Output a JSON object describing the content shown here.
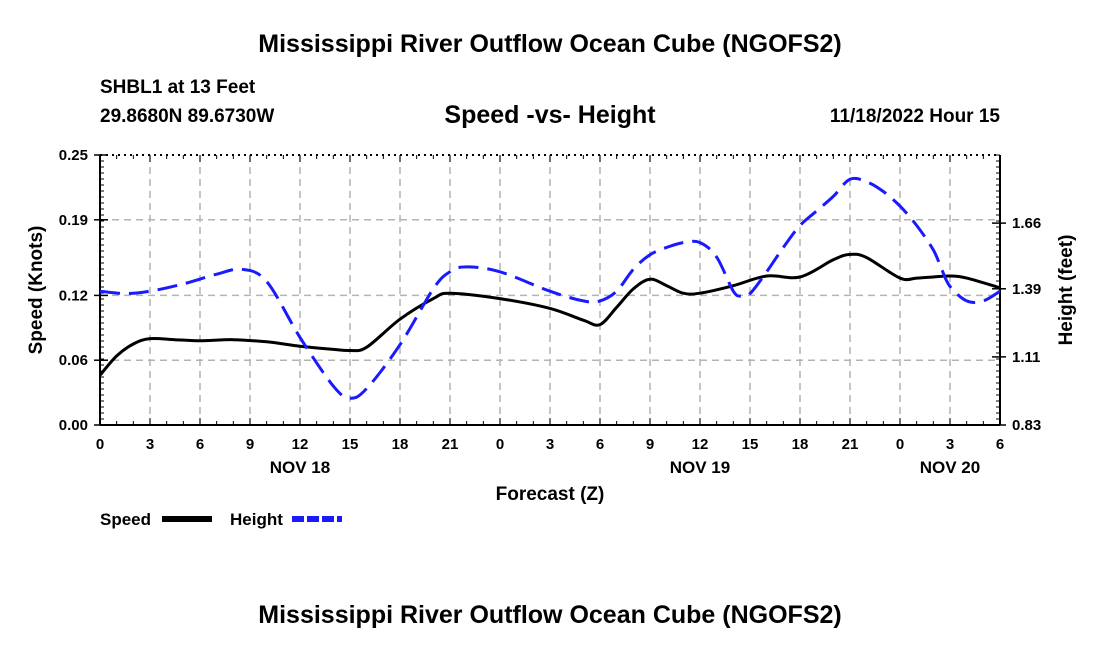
{
  "header": {
    "title": "Mississippi River Outflow Ocean Cube (NGOFS2)",
    "station": "SHBL1 at 13 Feet",
    "coords": "29.8680N  89.6730W",
    "subtitle": "Speed -vs- Height",
    "datetime": "11/18/2022 Hour 15"
  },
  "footer": {
    "title": "Mississippi River Outflow Ocean Cube (NGOFS2)"
  },
  "colors": {
    "speed": "#000000",
    "height": "#1a1aff",
    "grid": "#b4b4b4"
  },
  "chart_data": {
    "type": "line",
    "title": "Speed -vs- Height",
    "xlabel": "Forecast (Z)",
    "ylabel": "Speed (Knots)",
    "y2label": "Height (feet)",
    "xlim": [
      0,
      54
    ],
    "ylim": [
      0,
      0.25
    ],
    "y2lim": [
      0.83,
      1.94
    ],
    "x_ticks": [
      0,
      3,
      6,
      9,
      12,
      15,
      18,
      21,
      24,
      27,
      30,
      33,
      36,
      39,
      42,
      45,
      48,
      51,
      54
    ],
    "x_tick_labels": [
      "0",
      "3",
      "6",
      "9",
      "12",
      "15",
      "18",
      "21",
      "0",
      "3",
      "6",
      "9",
      "12",
      "15",
      "18",
      "21",
      "0",
      "3",
      "6"
    ],
    "y_ticks": [
      0,
      0.06,
      0.12,
      0.19,
      0.25
    ],
    "y_tick_labels": [
      "0.00",
      "0.06",
      "0.12",
      "0.19",
      "0.25"
    ],
    "y2_ticks": [
      0.83,
      1.11,
      1.39,
      1.66
    ],
    "y2_tick_labels": [
      "0.83",
      "1.11",
      "1.39",
      "1.66"
    ],
    "day_labels": [
      {
        "x": 12,
        "label": "NOV 18"
      },
      {
        "x": 36,
        "label": "NOV 19"
      },
      {
        "x": 51,
        "label": "NOV 20"
      }
    ],
    "legend": [
      {
        "name": "Speed",
        "style": "solid"
      },
      {
        "name": "Height",
        "style": "dashed"
      }
    ],
    "series": [
      {
        "name": "Speed",
        "axis": "left",
        "style": "solid",
        "x": [
          0,
          1,
          2,
          3,
          4.5,
          6,
          8,
          10,
          12,
          14,
          15,
          16,
          18,
          20,
          21,
          24,
          27,
          29,
          30,
          31,
          32,
          33,
          34,
          35,
          36,
          38,
          40,
          42,
          44,
          45,
          46,
          48,
          49,
          50,
          51,
          52,
          54
        ],
        "y": [
          0.046,
          0.064,
          0.075,
          0.08,
          0.079,
          0.078,
          0.079,
          0.077,
          0.073,
          0.07,
          0.069,
          0.072,
          0.098,
          0.117,
          0.122,
          0.117,
          0.108,
          0.097,
          0.093,
          0.109,
          0.126,
          0.135,
          0.129,
          0.122,
          0.122,
          0.129,
          0.138,
          0.137,
          0.153,
          0.158,
          0.155,
          0.136,
          0.136,
          0.137,
          0.138,
          0.136,
          0.127
        ]
      },
      {
        "name": "Height",
        "axis": "right",
        "style": "dashed",
        "x": [
          0,
          1.5,
          3,
          5,
          7,
          8.5,
          10,
          12,
          14,
          15,
          16,
          18,
          20,
          21,
          22,
          24,
          27,
          29,
          30,
          31,
          32,
          33,
          34,
          35,
          36,
          37,
          38,
          38.5,
          39,
          40,
          41,
          42,
          43,
          44,
          45,
          46,
          47,
          48,
          49,
          50,
          50.5,
          51,
          52,
          53,
          54
        ],
        "y": [
          1.38,
          1.37,
          1.38,
          1.41,
          1.45,
          1.47,
          1.42,
          1.19,
          0.99,
          0.94,
          0.98,
          1.16,
          1.39,
          1.46,
          1.48,
          1.46,
          1.38,
          1.34,
          1.34,
          1.38,
          1.47,
          1.53,
          1.56,
          1.58,
          1.58,
          1.52,
          1.38,
          1.36,
          1.37,
          1.46,
          1.56,
          1.65,
          1.71,
          1.77,
          1.84,
          1.83,
          1.79,
          1.73,
          1.65,
          1.55,
          1.47,
          1.4,
          1.34,
          1.34,
          1.38
        ]
      }
    ]
  }
}
